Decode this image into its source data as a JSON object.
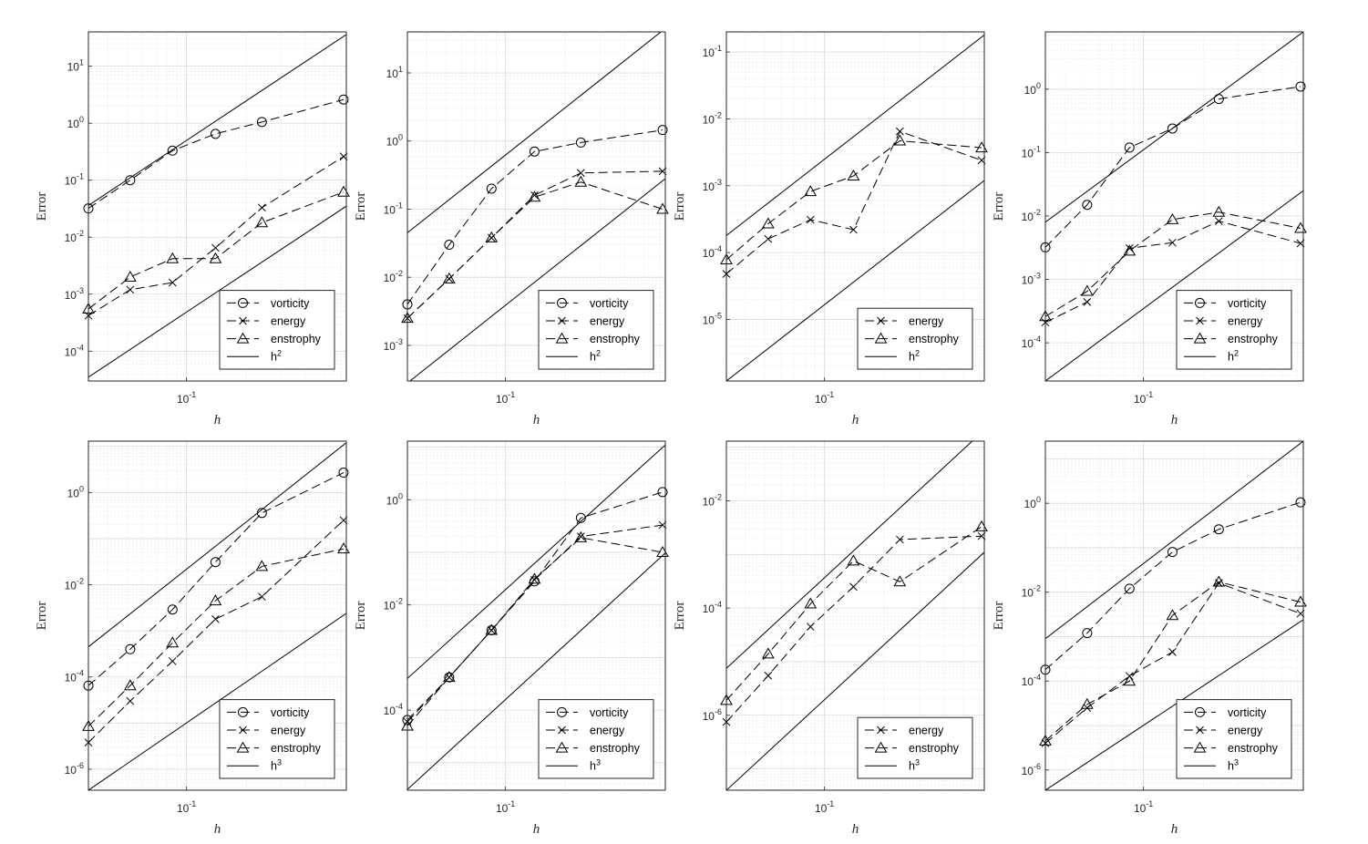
{
  "chart_data": [
    {
      "type": "line",
      "x_scale": "log",
      "y_scale": "log",
      "xlabel": "h",
      "ylabel": "Error",
      "xlim": [
        0.032,
        0.64
      ],
      "ylim": [
        3e-05,
        40
      ],
      "grid": true,
      "legend_location": "bottom-right",
      "xticks": [
        {
          "value": 0.1,
          "base": "10",
          "exp": "-1"
        }
      ],
      "yticks": [
        {
          "value": 0.0001,
          "base": "10",
          "exp": "-4"
        },
        {
          "value": 0.001,
          "base": "10",
          "exp": "-3"
        },
        {
          "value": 0.01,
          "base": "10",
          "exp": "-2"
        },
        {
          "value": 0.1,
          "base": "10",
          "exp": "-1"
        },
        {
          "value": 1,
          "base": "10",
          "exp": "0"
        },
        {
          "value": 10,
          "base": "10",
          "exp": "1"
        }
      ],
      "x": [
        0.032,
        0.052,
        0.085,
        0.14,
        0.24,
        0.62
      ],
      "series": [
        {
          "name": "vorticity",
          "marker": "circle",
          "values": [
            0.032,
            0.1,
            0.33,
            0.65,
            1.05,
            2.6
          ]
        },
        {
          "name": "energy",
          "marker": "cross",
          "values": [
            0.00042,
            0.0012,
            0.0016,
            0.0065,
            0.033,
            0.26
          ]
        },
        {
          "name": "enstrophy",
          "marker": "triangle",
          "values": [
            0.00055,
            0.002,
            0.0042,
            0.0042,
            0.018,
            0.062
          ]
        }
      ],
      "reference": [
        {
          "values": [
            0.036,
            36
          ]
        },
        {
          "values": [
            3.5e-05,
            0.035
          ]
        }
      ],
      "legend": [
        {
          "name": "vorticity",
          "marker": "circle"
        },
        {
          "name": "energy",
          "marker": "cross"
        },
        {
          "name": "enstrophy",
          "marker": "triangle"
        },
        {
          "label": "h",
          "exp": "2",
          "line": "solid"
        }
      ]
    },
    {
      "type": "line",
      "x_scale": "log",
      "y_scale": "log",
      "xlabel": "h",
      "ylabel": "Error",
      "xlim": [
        0.032,
        0.64
      ],
      "ylim": [
        0.0003,
        40
      ],
      "grid": true,
      "legend_location": "bottom-right",
      "xticks": [
        {
          "value": 0.1,
          "base": "10",
          "exp": "-1"
        }
      ],
      "yticks": [
        {
          "value": 0.001,
          "base": "10",
          "exp": "-3"
        },
        {
          "value": 0.01,
          "base": "10",
          "exp": "-2"
        },
        {
          "value": 0.1,
          "base": "10",
          "exp": "-1"
        },
        {
          "value": 1,
          "base": "10",
          "exp": "0"
        },
        {
          "value": 10,
          "base": "10",
          "exp": "1"
        }
      ],
      "x": [
        0.032,
        0.052,
        0.085,
        0.14,
        0.24,
        0.62
      ],
      "series": [
        {
          "name": "vorticity",
          "marker": "circle",
          "values": [
            0.004,
            0.03,
            0.2,
            0.7,
            0.95,
            1.45
          ]
        },
        {
          "name": "energy",
          "marker": "cross",
          "values": [
            0.0025,
            0.0095,
            0.038,
            0.16,
            0.34,
            0.36
          ]
        },
        {
          "name": "enstrophy",
          "marker": "triangle",
          "values": [
            0.0025,
            0.0095,
            0.038,
            0.15,
            0.25,
            0.1
          ]
        }
      ],
      "reference": [
        {
          "values": [
            0.045,
            45
          ]
        },
        {
          "values": [
            0.00028,
            0.28
          ]
        }
      ],
      "legend": [
        {
          "name": "vorticity",
          "marker": "circle"
        },
        {
          "name": "energy",
          "marker": "cross"
        },
        {
          "name": "enstrophy",
          "marker": "triangle"
        },
        {
          "label": "h",
          "exp": "2",
          "line": "solid"
        }
      ]
    },
    {
      "type": "line",
      "x_scale": "log",
      "y_scale": "log",
      "xlabel": "h",
      "ylabel": "Error",
      "xlim": [
        0.032,
        0.64
      ],
      "ylim": [
        1.2e-06,
        0.2
      ],
      "grid": true,
      "legend_location": "bottom-right",
      "xticks": [
        {
          "value": 0.1,
          "base": "10",
          "exp": "-1"
        }
      ],
      "yticks": [
        {
          "value": 1e-05,
          "base": "10",
          "exp": "-5"
        },
        {
          "value": 0.0001,
          "base": "10",
          "exp": "-4"
        },
        {
          "value": 0.001,
          "base": "10",
          "exp": "-3"
        },
        {
          "value": 0.01,
          "base": "10",
          "exp": "-2"
        },
        {
          "value": 0.1,
          "base": "10",
          "exp": "-1"
        }
      ],
      "x": [
        0.032,
        0.052,
        0.085,
        0.14,
        0.24,
        0.62
      ],
      "series": [
        {
          "name": "energy",
          "marker": "cross",
          "values": [
            4.8e-05,
            0.00016,
            0.00031,
            0.00022,
            0.0065,
            0.0024
          ]
        },
        {
          "name": "enstrophy",
          "marker": "triangle",
          "values": [
            7.8e-05,
            0.00027,
            0.00082,
            0.0014,
            0.0047,
            0.0037
          ]
        }
      ],
      "reference": [
        {
          "values": [
            0.00018,
            0.18
          ]
        },
        {
          "values": [
            1.2e-06,
            0.0012
          ]
        }
      ],
      "legend": [
        {
          "name": "energy",
          "marker": "cross"
        },
        {
          "name": "enstrophy",
          "marker": "triangle"
        },
        {
          "label": "h",
          "exp": "2",
          "line": "solid"
        }
      ]
    },
    {
      "type": "line",
      "x_scale": "log",
      "y_scale": "log",
      "xlabel": "h",
      "ylabel": "Error",
      "xlim": [
        0.032,
        0.64
      ],
      "ylim": [
        2.5e-05,
        8
      ],
      "grid": true,
      "legend_location": "bottom-right",
      "xticks": [
        {
          "value": 0.1,
          "base": "10",
          "exp": "-1"
        }
      ],
      "yticks": [
        {
          "value": 0.0001,
          "base": "10",
          "exp": "-4"
        },
        {
          "value": 0.001,
          "base": "10",
          "exp": "-3"
        },
        {
          "value": 0.01,
          "base": "10",
          "exp": "-2"
        },
        {
          "value": 0.1,
          "base": "10",
          "exp": "-1"
        },
        {
          "value": 1,
          "base": "10",
          "exp": "0"
        }
      ],
      "x": [
        0.032,
        0.052,
        0.085,
        0.14,
        0.24,
        0.62
      ],
      "series": [
        {
          "name": "vorticity",
          "marker": "circle",
          "values": [
            0.0032,
            0.015,
            0.12,
            0.24,
            0.7,
            1.1
          ]
        },
        {
          "name": "energy",
          "marker": "cross",
          "values": [
            0.00021,
            0.00044,
            0.0031,
            0.0038,
            0.0083,
            0.0037
          ]
        },
        {
          "name": "enstrophy",
          "marker": "triangle",
          "values": [
            0.00026,
            0.00065,
            0.0028,
            0.0088,
            0.0115,
            0.0064
          ]
        }
      ],
      "reference": [
        {
          "values": [
            0.008,
            8
          ]
        },
        {
          "values": [
            2.5e-05,
            0.025
          ]
        }
      ],
      "legend": [
        {
          "name": "vorticity",
          "marker": "circle"
        },
        {
          "name": "energy",
          "marker": "cross"
        },
        {
          "name": "enstrophy",
          "marker": "triangle"
        },
        {
          "label": "h",
          "exp": "2",
          "line": "solid"
        }
      ]
    },
    {
      "type": "line",
      "x_scale": "log",
      "y_scale": "log",
      "xlabel": "h",
      "ylabel": "Error",
      "xlim": [
        0.032,
        0.64
      ],
      "ylim": [
        3.5e-07,
        13
      ],
      "grid": true,
      "legend_location": "bottom-right",
      "xticks": [
        {
          "value": 0.1,
          "base": "10",
          "exp": "-1"
        }
      ],
      "yticks": [
        {
          "value": 1e-06,
          "base": "10",
          "exp": "-6"
        },
        {
          "value": 0.0001,
          "base": "10",
          "exp": "-4"
        },
        {
          "value": 0.01,
          "base": "10",
          "exp": "-2"
        },
        {
          "value": 1,
          "base": "10",
          "exp": "0"
        }
      ],
      "x": [
        0.032,
        0.052,
        0.085,
        0.14,
        0.24,
        0.62
      ],
      "series": [
        {
          "name": "vorticity",
          "marker": "circle",
          "values": [
            6.5e-05,
            0.0004,
            0.0029,
            0.031,
            0.36,
            2.7
          ]
        },
        {
          "name": "energy",
          "marker": "cross",
          "values": [
            3.8e-06,
            3e-05,
            0.00022,
            0.0018,
            0.0055,
            0.25
          ]
        },
        {
          "name": "enstrophy",
          "marker": "triangle",
          "values": [
            8.5e-06,
            6.5e-05,
            0.00055,
            0.0045,
            0.025,
            0.06
          ]
        }
      ],
      "reference": [
        {
          "values": [
            0.00045,
            12
          ]
        },
        {
          "values": [
            3.5e-07,
            0.0024
          ]
        }
      ],
      "legend": [
        {
          "name": "vorticity",
          "marker": "circle"
        },
        {
          "name": "energy",
          "marker": "cross"
        },
        {
          "name": "enstrophy",
          "marker": "triangle"
        },
        {
          "label": "h",
          "exp": "3",
          "line": "solid"
        }
      ]
    },
    {
      "type": "line",
      "x_scale": "log",
      "y_scale": "log",
      "xlabel": "h",
      "ylabel": "Error",
      "xlim": [
        0.032,
        0.64
      ],
      "ylim": [
        3e-06,
        13
      ],
      "grid": true,
      "legend_location": "bottom-right",
      "xticks": [
        {
          "value": 0.1,
          "base": "10",
          "exp": "-1"
        }
      ],
      "yticks": [
        {
          "value": 0.0001,
          "base": "10",
          "exp": "-4"
        },
        {
          "value": 0.01,
          "base": "10",
          "exp": "-2"
        },
        {
          "value": 1,
          "base": "10",
          "exp": "0"
        }
      ],
      "x": [
        0.032,
        0.052,
        0.085,
        0.14,
        0.24,
        0.62
      ],
      "series": [
        {
          "name": "vorticity",
          "marker": "circle",
          "values": [
            6.5e-05,
            0.00042,
            0.0033,
            0.028,
            0.45,
            1.4
          ]
        },
        {
          "name": "energy",
          "marker": "cross",
          "values": [
            6e-05,
            0.00042,
            0.0033,
            0.03,
            0.2,
            0.33
          ]
        },
        {
          "name": "enstrophy",
          "marker": "triangle",
          "values": [
            5e-05,
            0.00042,
            0.0033,
            0.031,
            0.19,
            0.1
          ]
        }
      ],
      "reference": [
        {
          "values": [
            0.0004,
            11
          ]
        },
        {
          "values": [
            3.1e-06,
            0.097
          ]
        }
      ],
      "legend": [
        {
          "name": "vorticity",
          "marker": "circle"
        },
        {
          "name": "energy",
          "marker": "cross"
        },
        {
          "name": "enstrophy",
          "marker": "triangle"
        },
        {
          "label": "h",
          "exp": "3",
          "line": "solid"
        }
      ]
    },
    {
      "type": "line",
      "x_scale": "log",
      "y_scale": "log",
      "xlabel": "h",
      "ylabel": "Error",
      "xlim": [
        0.032,
        0.64
      ],
      "ylim": [
        4e-08,
        0.13
      ],
      "grid": true,
      "legend_location": "bottom-right",
      "xticks": [
        {
          "value": 0.1,
          "base": "10",
          "exp": "-1"
        }
      ],
      "yticks": [
        {
          "value": 1e-06,
          "base": "10",
          "exp": "-6"
        },
        {
          "value": 0.0001,
          "base": "10",
          "exp": "-4"
        },
        {
          "value": 0.01,
          "base": "10",
          "exp": "-2"
        }
      ],
      "x": [
        0.032,
        0.052,
        0.085,
        0.14,
        0.24,
        0.62
      ],
      "series": [
        {
          "name": "energy",
          "marker": "cross",
          "values": [
            7.5e-07,
            5.5e-06,
            4.5e-05,
            0.00025,
            0.0019,
            0.0022
          ]
        },
        {
          "name": "enstrophy",
          "marker": "triangle",
          "values": [
            1.9e-06,
            1.4e-05,
            0.00012,
            0.00076,
            0.00031,
            0.0033
          ]
        }
      ],
      "reference": [
        {
          "values": [
            7.5e-06,
            0.21
          ]
        },
        {
          "values": [
            4e-08,
            0.0011
          ]
        }
      ],
      "legend": [
        {
          "name": "energy",
          "marker": "cross"
        },
        {
          "name": "enstrophy",
          "marker": "triangle"
        },
        {
          "label": "h",
          "exp": "3",
          "line": "solid"
        }
      ]
    },
    {
      "type": "line",
      "x_scale": "log",
      "y_scale": "log",
      "xlabel": "h",
      "ylabel": "Error",
      "xlim": [
        0.032,
        0.64
      ],
      "ylim": [
        3.5e-07,
        25
      ],
      "grid": true,
      "legend_location": "bottom-right",
      "xticks": [
        {
          "value": 0.1,
          "base": "10",
          "exp": "-1"
        }
      ],
      "yticks": [
        {
          "value": 1e-06,
          "base": "10",
          "exp": "-6"
        },
        {
          "value": 0.0001,
          "base": "10",
          "exp": "-4"
        },
        {
          "value": 0.01,
          "base": "10",
          "exp": "-2"
        },
        {
          "value": 1,
          "base": "10",
          "exp": "0"
        }
      ],
      "x": [
        0.032,
        0.052,
        0.085,
        0.14,
        0.24,
        0.62
      ],
      "series": [
        {
          "name": "vorticity",
          "marker": "circle",
          "values": [
            0.00018,
            0.0012,
            0.012,
            0.08,
            0.26,
            1.05
          ]
        },
        {
          "name": "energy",
          "marker": "cross",
          "values": [
            4e-06,
            2.5e-05,
            0.00013,
            0.00045,
            0.016,
            0.0033
          ]
        },
        {
          "name": "enstrophy",
          "marker": "triangle",
          "values": [
            4.5e-06,
            3e-05,
            0.0001,
            0.003,
            0.017,
            0.006
          ]
        }
      ],
      "reference": [
        {
          "values": [
            0.0009,
            25
          ]
        },
        {
          "values": [
            3.5e-07,
            0.0024
          ]
        }
      ],
      "legend": [
        {
          "name": "vorticity",
          "marker": "circle"
        },
        {
          "name": "energy",
          "marker": "cross"
        },
        {
          "name": "enstrophy",
          "marker": "triangle"
        },
        {
          "label": "h",
          "exp": "3",
          "line": "solid"
        }
      ]
    }
  ]
}
